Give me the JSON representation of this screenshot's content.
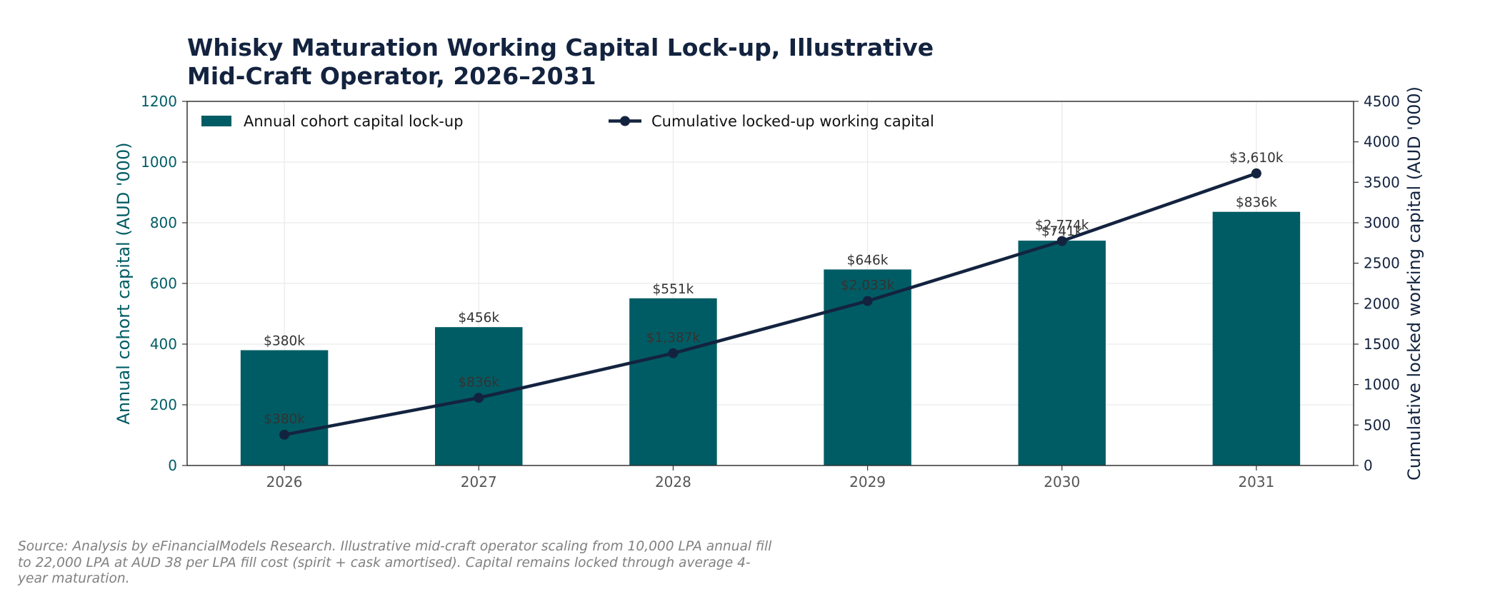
{
  "chart_data": {
    "type": "bar",
    "title": "Whisky Maturation Working Capital Lock-up, Illustrative\nMid-Craft Operator, 2026–2031",
    "categories": [
      "2026",
      "2027",
      "2028",
      "2029",
      "2030",
      "2031"
    ],
    "series": [
      {
        "name": "Annual cohort capital lock-up",
        "type": "bar",
        "axis": "left",
        "color": "#005c64",
        "values": [
          380,
          456,
          551,
          646,
          741,
          836
        ],
        "labels": [
          "$380k",
          "$456k",
          "$551k",
          "$646k",
          "$741k",
          "$836k"
        ]
      },
      {
        "name": "Cumulative locked-up working capital",
        "type": "line",
        "axis": "right",
        "color": "#13233f",
        "values": [
          380,
          836,
          1387,
          2033,
          2774,
          3610
        ],
        "labels": [
          "$380k",
          "$836k",
          "$1,387k",
          "$2,033k",
          "$2,774k",
          "$3,610k"
        ]
      }
    ],
    "y_left": {
      "label": "Annual cohort capital (AUD '000)",
      "range": [
        0,
        1200
      ],
      "ticks": [
        "0",
        "200",
        "400",
        "600",
        "800",
        "1000",
        "1200"
      ],
      "color": "#005c64"
    },
    "y_right": {
      "label": "Cumulative locked working capital (AUD '000)",
      "range": [
        0,
        4500
      ],
      "ticks": [
        "0",
        "500",
        "1000",
        "1500",
        "2000",
        "2500",
        "3000",
        "3500",
        "4000",
        "4500"
      ],
      "color": "#13233f"
    },
    "grid": true,
    "legend_position": "top"
  },
  "source_note": "Source: Analysis by eFinancialModels Research. Illustrative mid-craft operator scaling from 10,000 LPA annual fill to 22,000 LPA at AUD 38 per LPA fill cost (spirit + cask amortised). Capital remains locked through average 4-year maturation."
}
